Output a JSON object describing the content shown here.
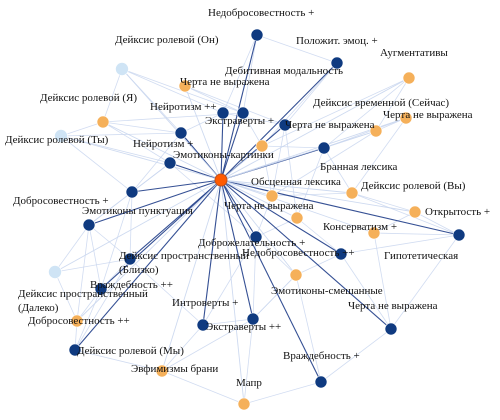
{
  "colors": {
    "hub": "#ff5a00",
    "dark": "#0f3a80",
    "orange": "#f5b05a",
    "light": "#cfe4f5",
    "edge_main": "#1f3d88",
    "edge_faint": "#c9d6ee"
  },
  "nodes": [
    {
      "id": "hub",
      "type": "hub",
      "label": ""
    },
    {
      "id": "n1",
      "type": "dark",
      "label": "Недобросовестность +"
    },
    {
      "id": "n2",
      "type": "light",
      "label": "Дейксис ролевой (Он)"
    },
    {
      "id": "n3",
      "type": "dark",
      "label": "Положит. эмоц. +"
    },
    {
      "id": "n4",
      "type": "orange",
      "label": "Аугментативы"
    },
    {
      "id": "n5",
      "type": "dark",
      "label": "Дебитивная модальность"
    },
    {
      "id": "n6",
      "type": "orange",
      "label": "Черта не выражена"
    },
    {
      "id": "n7",
      "type": "orange",
      "label": "Дейксис ролевой (Я)"
    },
    {
      "id": "n8",
      "type": "dark",
      "label": "Нейротизм ++"
    },
    {
      "id": "n9",
      "type": "orange",
      "label": "Дейксис временной (Сейчас)"
    },
    {
      "id": "n10",
      "type": "orange",
      "label": "Черта не выражена"
    },
    {
      "id": "n11",
      "type": "dark",
      "label": "Экстраверты +"
    },
    {
      "id": "n12",
      "type": "orange",
      "label": "Черта не выражена"
    },
    {
      "id": "n13",
      "type": "light",
      "label": "Дейксис ролевой (Ты)"
    },
    {
      "id": "n14",
      "type": "dark",
      "label": "Нейротизм +"
    },
    {
      "id": "n15",
      "type": "dark",
      "label": "Эмотиконы-картинки"
    },
    {
      "id": "n16",
      "type": "dark",
      "label": "Бранная лексика"
    },
    {
      "id": "n17",
      "type": "orange",
      "label": "Обсценная лексика"
    },
    {
      "id": "n18",
      "type": "orange",
      "label": "Дейксис ролевой (Вы)"
    },
    {
      "id": "n19",
      "type": "dark",
      "label": "Добросовестность +"
    },
    {
      "id": "n20",
      "type": "dark",
      "label": "Эмотиконы пунктуация"
    },
    {
      "id": "n21",
      "type": "orange",
      "label": "Черта не выражена"
    },
    {
      "id": "n22",
      "type": "orange",
      "label": "Открытость +"
    },
    {
      "id": "n23",
      "type": "dark",
      "label": "Консерватизм +"
    },
    {
      "id": "n24",
      "type": "dark",
      "label": "Дейксис пространственный (Близко)"
    },
    {
      "id": "n25",
      "type": "dark",
      "label": "Доброжелательность +"
    },
    {
      "id": "n26",
      "type": "dark",
      "label": "Недобросовестность ++"
    },
    {
      "id": "n27",
      "type": "orange",
      "label": "Гипотетическая"
    },
    {
      "id": "n28",
      "type": "dark",
      "label": "Враждебность ++"
    },
    {
      "id": "n29",
      "type": "light",
      "label": "Дейксис пространственный (Далеко)"
    },
    {
      "id": "n30",
      "type": "orange",
      "label": "Эмотиконы-смешанные"
    },
    {
      "id": "n31",
      "type": "dark",
      "label": "Интроверты +"
    },
    {
      "id": "n32",
      "type": "orange",
      "label": "Добросовестность ++"
    },
    {
      "id": "n33",
      "type": "dark",
      "label": "Черта не выражена"
    },
    {
      "id": "n34",
      "type": "dark",
      "label": "Экстраверты ++"
    },
    {
      "id": "n35",
      "type": "dark",
      "label": "Дейксис ролевой (Мы)"
    },
    {
      "id": "n36",
      "type": "orange",
      "label": "Эвфимизмы брани"
    },
    {
      "id": "n37",
      "type": "dark",
      "label": "Враждебность +"
    },
    {
      "id": "n38",
      "type": "orange",
      "label": "Мапр"
    }
  ]
}
